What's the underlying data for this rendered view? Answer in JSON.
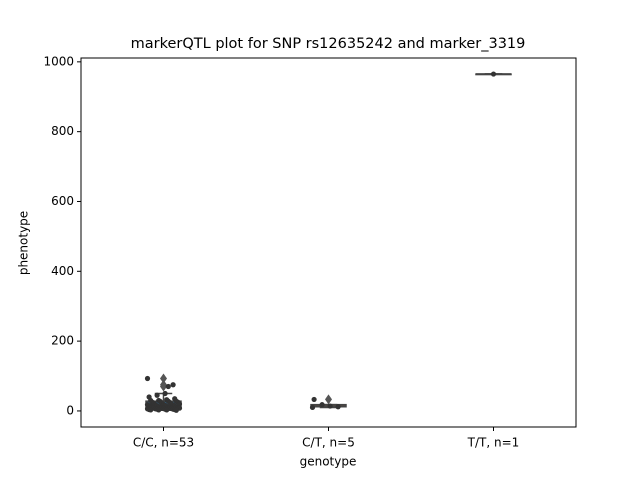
{
  "chart_data": {
    "type": "box",
    "title": "markerQTL plot for SNP rs12635242 and marker_3319",
    "xlabel": "genotype",
    "ylabel": "phenotype",
    "categories": [
      "C/C, n=53",
      "C/T, n=5",
      "T/T, n=1"
    ],
    "boxes": [
      {
        "min": 2,
        "q1": 7,
        "median": 15,
        "q3": 28,
        "max": 50,
        "outliers": [
          70,
          75,
          93
        ],
        "color": "#3274a1"
      },
      {
        "min": 10,
        "q1": 12,
        "median": 14,
        "q3": 18,
        "max": 18,
        "outliers": [
          33
        ],
        "color": "#e1812c"
      },
      {
        "min": 965,
        "q1": 965,
        "median": 965,
        "q3": 965,
        "max": 965,
        "outliers": [],
        "color": "#3a923a"
      }
    ],
    "points": [
      [
        93,
        75,
        50,
        45,
        40,
        35,
        32,
        30,
        30,
        28,
        28,
        27,
        25,
        25,
        24,
        22,
        22,
        20,
        20,
        19,
        18,
        18,
        17,
        16,
        15,
        15,
        14,
        13,
        12,
        12,
        11,
        10,
        10,
        10,
        9,
        9,
        8,
        8,
        8,
        7,
        7,
        6,
        6,
        5,
        5,
        5,
        4,
        4,
        3,
        3,
        3,
        2,
        70
      ],
      [
        10,
        12,
        14,
        18,
        33
      ],
      [
        965
      ]
    ],
    "point_color": "#333333",
    "ylim": [
      -46,
      1011
    ],
    "yticks": [
      0,
      200,
      400,
      600,
      800,
      1000
    ]
  }
}
